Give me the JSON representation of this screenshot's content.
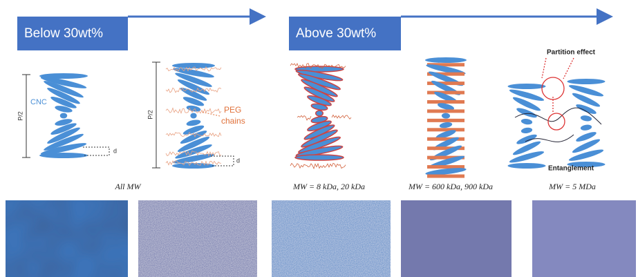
{
  "banners": [
    {
      "label": "Below 30wt%"
    },
    {
      "label": "Above 30wt%"
    }
  ],
  "labels": {
    "cnc": "CNC",
    "peg": [
      "PEG",
      "chains"
    ],
    "pitch": [
      "P/2",
      "P/2"
    ],
    "spacing": [
      "d",
      "d"
    ]
  },
  "mw_labels": [
    "All MW",
    "MW = 8 kDa, 20 kDa",
    "MW = 600 kDa, 900 kDa",
    "MW = 5 MDa"
  ],
  "effects": {
    "partition": "Partition effect",
    "entanglement": "Entanglement"
  }
}
